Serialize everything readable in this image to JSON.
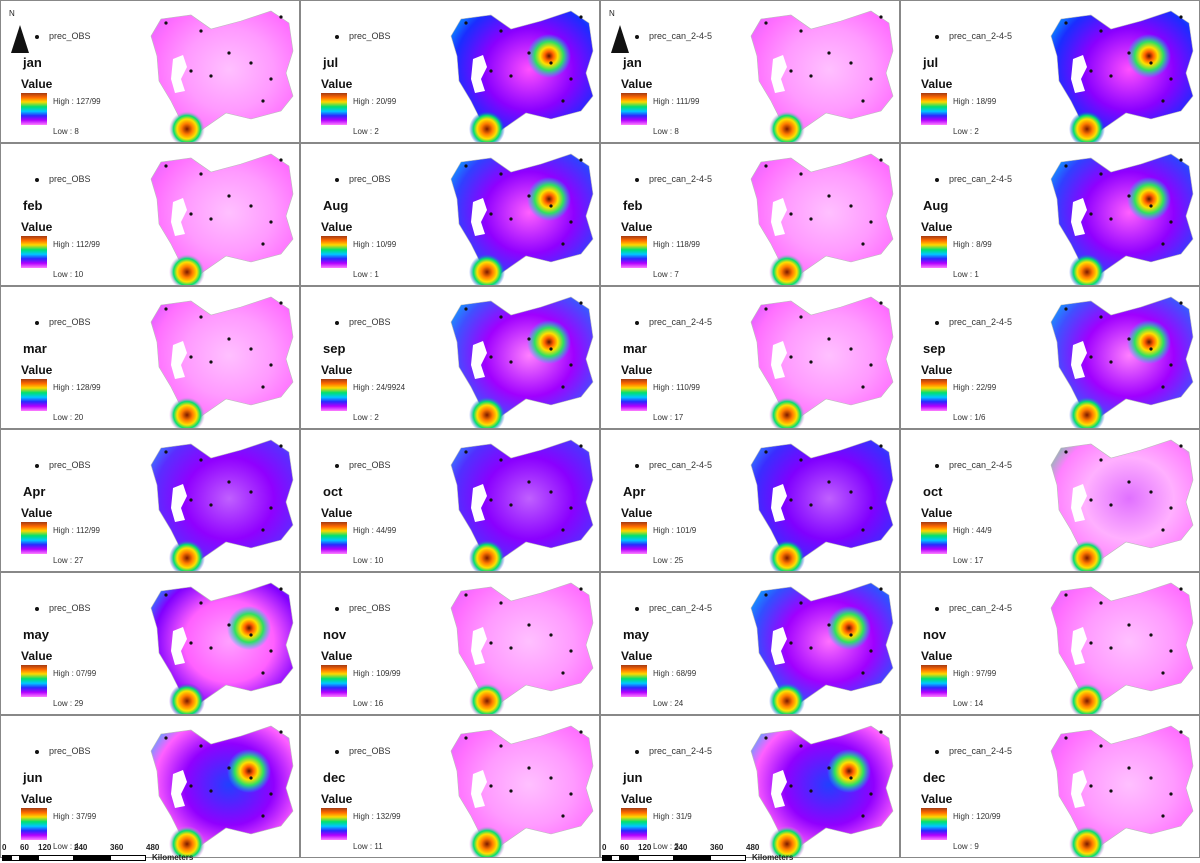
{
  "north_label": "N",
  "value_label": "Value",
  "panels": [
    {
      "point_label": "prec_OBS",
      "month": "jan",
      "high": "High : 127/99",
      "low": "Low : 8",
      "colors": [
        "#ff70ff",
        "#ff9aff",
        "#ffc0ff",
        "#e060ff"
      ],
      "hot": false
    },
    {
      "point_label": "prec_OBS",
      "month": "jul",
      "high": "High : 20/99",
      "low": "Low : 2",
      "colors": [
        "#1a2dff",
        "#8a00ff",
        "#ff50ff",
        "#00c8ff"
      ],
      "hot": true
    },
    {
      "point_label": "prec_can_2-4-5",
      "month": "jan",
      "high": "High : 111/99",
      "low": "Low : 8",
      "colors": [
        "#ff70ff",
        "#ff9aff",
        "#ffc0ff",
        "#e060ff"
      ],
      "hot": false
    },
    {
      "point_label": "prec_can_2-4-5",
      "month": "jul",
      "high": "High : 18/99",
      "low": "Low : 2",
      "colors": [
        "#1a2dff",
        "#8a00ff",
        "#ff50ff",
        "#00c8ff"
      ],
      "hot": true
    },
    {
      "point_label": "prec_OBS",
      "month": "feb",
      "high": "High : 112/99",
      "low": "Low : 10",
      "colors": [
        "#ff70ff",
        "#ff9aff",
        "#ffc0ff",
        "#e060ff"
      ],
      "hot": false
    },
    {
      "point_label": "prec_OBS",
      "month": "Aug",
      "high": "High : 10/99",
      "low": "Low : 1",
      "colors": [
        "#3040ff",
        "#9000ff",
        "#ff60ff",
        "#00c8ff"
      ],
      "hot": true
    },
    {
      "point_label": "prec_can_2-4-5",
      "month": "feb",
      "high": "High : 118/99",
      "low": "Low : 7",
      "colors": [
        "#ff70ff",
        "#ff9aff",
        "#ffc0ff",
        "#e060ff"
      ],
      "hot": false
    },
    {
      "point_label": "prec_can_2-4-5",
      "month": "Aug",
      "high": "High : 8/99",
      "low": "Low : 1",
      "colors": [
        "#3040ff",
        "#9000ff",
        "#ff60ff",
        "#00c8ff"
      ],
      "hot": true
    },
    {
      "point_label": "prec_OBS",
      "month": "mar",
      "high": "High : 128/99",
      "low": "Low : 20",
      "colors": [
        "#ff70ff",
        "#ff9aff",
        "#ffc0ff",
        "#d050ff"
      ],
      "hot": false
    },
    {
      "point_label": "prec_OBS",
      "month": "sep",
      "high": "High : 24/9924",
      "low": "Low : 2",
      "colors": [
        "#4050ff",
        "#a000ff",
        "#ff80ff",
        "#00c0ff"
      ],
      "hot": true
    },
    {
      "point_label": "prec_can_2-4-5",
      "month": "mar",
      "high": "High : 110/99",
      "low": "Low : 17",
      "colors": [
        "#ff70ff",
        "#ff9aff",
        "#ffc0ff",
        "#d050ff"
      ],
      "hot": false
    },
    {
      "point_label": "prec_can_2-4-5",
      "month": "sep",
      "high": "High : 22/99",
      "low": "Low : 1/6",
      "colors": [
        "#4050ff",
        "#a000ff",
        "#ff80ff",
        "#00c0ff"
      ],
      "hot": true
    },
    {
      "point_label": "prec_OBS",
      "month": "Apr",
      "high": "High : 112/99",
      "low": "Low : 27",
      "colors": [
        "#5a2dff",
        "#9000ff",
        "#c060ff",
        "#30a0ff"
      ],
      "hot": false
    },
    {
      "point_label": "prec_OBS",
      "month": "oct",
      "high": "High : 44/99",
      "low": "Low : 10",
      "colors": [
        "#5030ff",
        "#8a00ff",
        "#c060ff",
        "#30a0ff"
      ],
      "hot": false
    },
    {
      "point_label": "prec_can_2-4-5",
      "month": "Apr",
      "high": "High : 101/9",
      "low": "Low : 25",
      "colors": [
        "#3a2dff",
        "#8000ff",
        "#c060ff",
        "#30a0ff"
      ],
      "hot": false
    },
    {
      "point_label": "prec_can_2-4-5",
      "month": "oct",
      "high": "High : 44/9",
      "low": "Low : 17",
      "colors": [
        "#ff80ff",
        "#ffb0ff",
        "#e070ff",
        "#40e080"
      ],
      "hot": false
    },
    {
      "point_label": "prec_OBS",
      "month": "may",
      "high": "High : 07/99",
      "low": "Low : 29",
      "colors": [
        "#8000ff",
        "#ff60ff",
        "#ffa0ff",
        "#00c8ff"
      ],
      "hot": true
    },
    {
      "point_label": "prec_OBS",
      "month": "nov",
      "high": "High : 109/99",
      "low": "Low : 16",
      "colors": [
        "#ff70ff",
        "#ff9aff",
        "#ffc0ff",
        "#e060ff"
      ],
      "hot": false
    },
    {
      "point_label": "prec_can_2-4-5",
      "month": "may",
      "high": "High : 68/99",
      "low": "Low : 24",
      "colors": [
        "#3050ff",
        "#a000ff",
        "#ff70ff",
        "#00c8ff"
      ],
      "hot": true
    },
    {
      "point_label": "prec_can_2-4-5",
      "month": "nov",
      "high": "High : 97/99",
      "low": "Low : 14",
      "colors": [
        "#ff70ff",
        "#ff9aff",
        "#ffc0ff",
        "#e060ff"
      ],
      "hot": false
    },
    {
      "point_label": "prec_OBS",
      "month": "jun",
      "high": "High : 37/99",
      "low": "Low : 4",
      "colors": [
        "#ff60ff",
        "#9000ff",
        "#2040ff",
        "#00c8ff"
      ],
      "hot": true
    },
    {
      "point_label": "prec_OBS",
      "month": "dec",
      "high": "High : 132/99",
      "low": "Low : 11",
      "colors": [
        "#ff70ff",
        "#ff9aff",
        "#ffc0ff",
        "#e060ff"
      ],
      "hot": false
    },
    {
      "point_label": "prec_can_2-4-5",
      "month": "jun",
      "high": "High : 31/9",
      "low": "Low : 3",
      "colors": [
        "#ff60ff",
        "#9000ff",
        "#2040ff",
        "#00c8ff"
      ],
      "hot": true
    },
    {
      "point_label": "prec_can_2-4-5",
      "month": "dec",
      "high": "High : 120/99",
      "low": "Low : 9",
      "colors": [
        "#ff70ff",
        "#ff9aff",
        "#ffc0ff",
        "#e060ff"
      ],
      "hot": false
    }
  ],
  "scalebars": [
    {
      "ticks": [
        "0",
        "60",
        "120",
        "240",
        "360",
        "480"
      ],
      "unit": "Kilometers"
    },
    {
      "ticks": [
        "0",
        "60",
        "120",
        "240",
        "360",
        "480"
      ],
      "unit": "Kilometers"
    }
  ]
}
